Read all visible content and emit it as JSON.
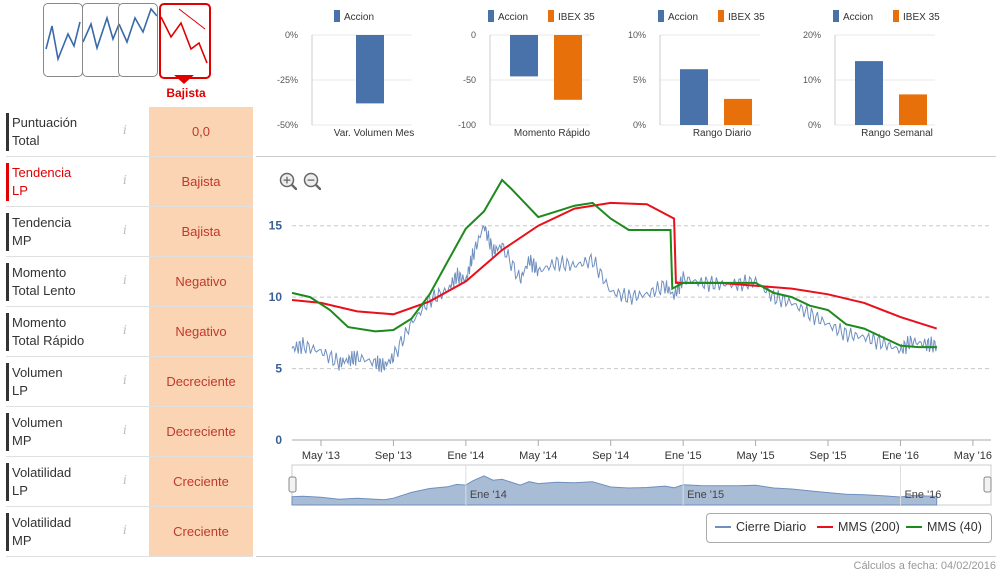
{
  "trend_selector": {
    "active_label": "Bajista"
  },
  "scores": [
    {
      "label_1": "Puntuación",
      "label_2": "Total",
      "value": "0,0",
      "highlight": false
    },
    {
      "label_1": "Tendencia",
      "label_2": "LP",
      "value": "Bajista",
      "highlight": true
    },
    {
      "label_1": "Tendencia",
      "label_2": "MP",
      "value": "Bajista",
      "highlight": false
    },
    {
      "label_1": "Momento",
      "label_2": "Total Lento",
      "value": "Negativo",
      "highlight": false
    },
    {
      "label_1": "Momento",
      "label_2": "Total Rápido",
      "value": "Negativo",
      "highlight": false
    },
    {
      "label_1": "Volumen",
      "label_2": "LP",
      "value": "Decreciente",
      "highlight": false
    },
    {
      "label_1": "Volumen",
      "label_2": "MP",
      "value": "Decreciente",
      "highlight": false
    },
    {
      "label_1": "Volatilidad",
      "label_2": "LP",
      "value": "Creciente",
      "highlight": false
    },
    {
      "label_1": "Volatilidad",
      "label_2": "MP",
      "value": "Creciente",
      "highlight": false
    }
  ],
  "info_icon": "i",
  "colors": {
    "accion": "#4a72aa",
    "ibex": "#e8700a",
    "daily": "#6f8fbf",
    "mms200": "#e8101a",
    "mms40": "#1d8a1d",
    "score_bg": "#fbd4b4",
    "active": "#e00000"
  },
  "chart_data": [
    {
      "type": "bar",
      "title": "Var. Volumen Mes",
      "legend": [
        "Accion"
      ],
      "values": [
        -38
      ],
      "ylim": [
        -50,
        0
      ],
      "yticks": [
        "0%",
        "-25%",
        "-50%"
      ],
      "ytick_values": [
        0,
        -25,
        -50
      ]
    },
    {
      "type": "bar",
      "title": "Momento Rápido",
      "legend": [
        "Accion",
        "IBEX 35"
      ],
      "values": [
        -46,
        -72
      ],
      "ylim": [
        -100,
        0
      ],
      "yticks": [
        "0",
        "-50",
        "-100"
      ],
      "ytick_values": [
        0,
        -50,
        -100
      ]
    },
    {
      "type": "bar",
      "title": "Rango Diario",
      "legend": [
        "Accion",
        "IBEX 35"
      ],
      "values": [
        6.2,
        2.9
      ],
      "ylim": [
        0,
        10
      ],
      "yticks": [
        "10%",
        "5%",
        "0%"
      ],
      "ytick_values": [
        10,
        5,
        0
      ]
    },
    {
      "type": "bar",
      "title": "Rango Semanal",
      "legend": [
        "Accion",
        "IBEX 35"
      ],
      "values": [
        14.2,
        6.8
      ],
      "ylim": [
        0,
        20
      ],
      "yticks": [
        "20%",
        "10%",
        "0%"
      ],
      "ytick_values": [
        20,
        10,
        0
      ]
    },
    {
      "type": "line",
      "x_ticks": [
        "May '13",
        "Sep '13",
        "Ene '14",
        "May '14",
        "Sep '14",
        "Ene '15",
        "May '15",
        "Sep '15",
        "Ene '16",
        "May '16"
      ],
      "x_tick_months": [
        0,
        4,
        8,
        12,
        16,
        20,
        24,
        28,
        32,
        36
      ],
      "x_range_months": [
        -1.6,
        37
      ],
      "ylim": [
        0,
        17.5
      ],
      "yticks": [
        "0",
        "5",
        "10",
        "15"
      ],
      "ytick_values": [
        0,
        5,
        10,
        15
      ],
      "navigator_labels": [
        "Ene '14",
        "Ene '15",
        "Ene '16"
      ],
      "navigator_months": [
        8,
        20,
        32
      ],
      "series": [
        {
          "name": "Cierre Diario",
          "points": [
            [
              -1.6,
              6.4
            ],
            [
              -1,
              6.6
            ],
            [
              0,
              6.2
            ],
            [
              1,
              5.4
            ],
            [
              1.5,
              5.6
            ],
            [
              2,
              5.8
            ],
            [
              3,
              5.4
            ],
            [
              3.5,
              5.2
            ],
            [
              4,
              5.8
            ],
            [
              5,
              8.2
            ],
            [
              6,
              9.8
            ],
            [
              7,
              10.5
            ],
            [
              7.5,
              11.5
            ],
            [
              8,
              11.2
            ],
            [
              8.4,
              13
            ],
            [
              9,
              15
            ],
            [
              9.5,
              13.2
            ],
            [
              10,
              13.6
            ],
            [
              11,
              11.2
            ],
            [
              11.5,
              12.6
            ],
            [
              12,
              11.8
            ],
            [
              13,
              12.4
            ],
            [
              14,
              12.2
            ],
            [
              15,
              12.6
            ],
            [
              16,
              10.4
            ],
            [
              17,
              10
            ],
            [
              18,
              10.2
            ],
            [
              19,
              10.8
            ],
            [
              19.5,
              10.1
            ],
            [
              20,
              11.3
            ],
            [
              21,
              11
            ],
            [
              22,
              10.9
            ],
            [
              23,
              10.9
            ],
            [
              24,
              11.1
            ],
            [
              25,
              10
            ],
            [
              26,
              9.6
            ],
            [
              27,
              8.8
            ],
            [
              28,
              8.1
            ],
            [
              29,
              7.4
            ],
            [
              30,
              7.2
            ],
            [
              31,
              6.8
            ],
            [
              32,
              6.3
            ],
            [
              32.6,
              6.9
            ],
            [
              33.4,
              6.7
            ],
            [
              34,
              6.6
            ]
          ]
        },
        {
          "name": "MMS (200)",
          "points": [
            [
              -1.6,
              9.8
            ],
            [
              0,
              9.6
            ],
            [
              2,
              9.0
            ],
            [
              4,
              8.8
            ],
            [
              6,
              9.7
            ],
            [
              8,
              11.1
            ],
            [
              10,
              13.3
            ],
            [
              12,
              15
            ],
            [
              14,
              16.2
            ],
            [
              16,
              16.6
            ],
            [
              18,
              16.5
            ],
            [
              19.5,
              15.5
            ],
            [
              19.6,
              11
            ],
            [
              22,
              11
            ],
            [
              24,
              10.8
            ],
            [
              26,
              10.6
            ],
            [
              28,
              10.2
            ],
            [
              30,
              9.6
            ],
            [
              32,
              8.6
            ],
            [
              34,
              7.8
            ]
          ]
        },
        {
          "name": "MMS (40)",
          "points": [
            [
              -1.6,
              10.3
            ],
            [
              -0.6,
              10
            ],
            [
              0.5,
              9.1
            ],
            [
              1.5,
              7.9
            ],
            [
              3,
              7.6
            ],
            [
              4,
              7.7
            ],
            [
              5,
              8.5
            ],
            [
              6,
              10.2
            ],
            [
              7,
              12.5
            ],
            [
              8,
              14.8
            ],
            [
              9,
              16
            ],
            [
              10,
              18.2
            ],
            [
              10.5,
              17.6
            ],
            [
              12,
              15.6
            ],
            [
              13,
              16
            ],
            [
              14,
              16.4
            ],
            [
              15,
              16.6
            ],
            [
              16,
              15.5
            ],
            [
              17,
              14.7
            ],
            [
              19.3,
              14.7
            ],
            [
              19.4,
              10.6
            ],
            [
              20,
              11
            ],
            [
              22,
              11
            ],
            [
              24,
              11
            ],
            [
              25,
              10.3
            ],
            [
              26,
              10
            ],
            [
              27,
              9.4
            ],
            [
              28,
              9.1
            ],
            [
              29,
              8.1
            ],
            [
              30,
              7.8
            ],
            [
              31,
              7.2
            ],
            [
              32,
              6.6
            ],
            [
              33,
              6.5
            ],
            [
              34,
              6.5
            ]
          ]
        }
      ]
    }
  ],
  "zoom": {
    "in_symbol": "+",
    "out_symbol": "−"
  },
  "footer": {
    "calc_label": "Cálculos a fecha: 04/02/2016"
  }
}
